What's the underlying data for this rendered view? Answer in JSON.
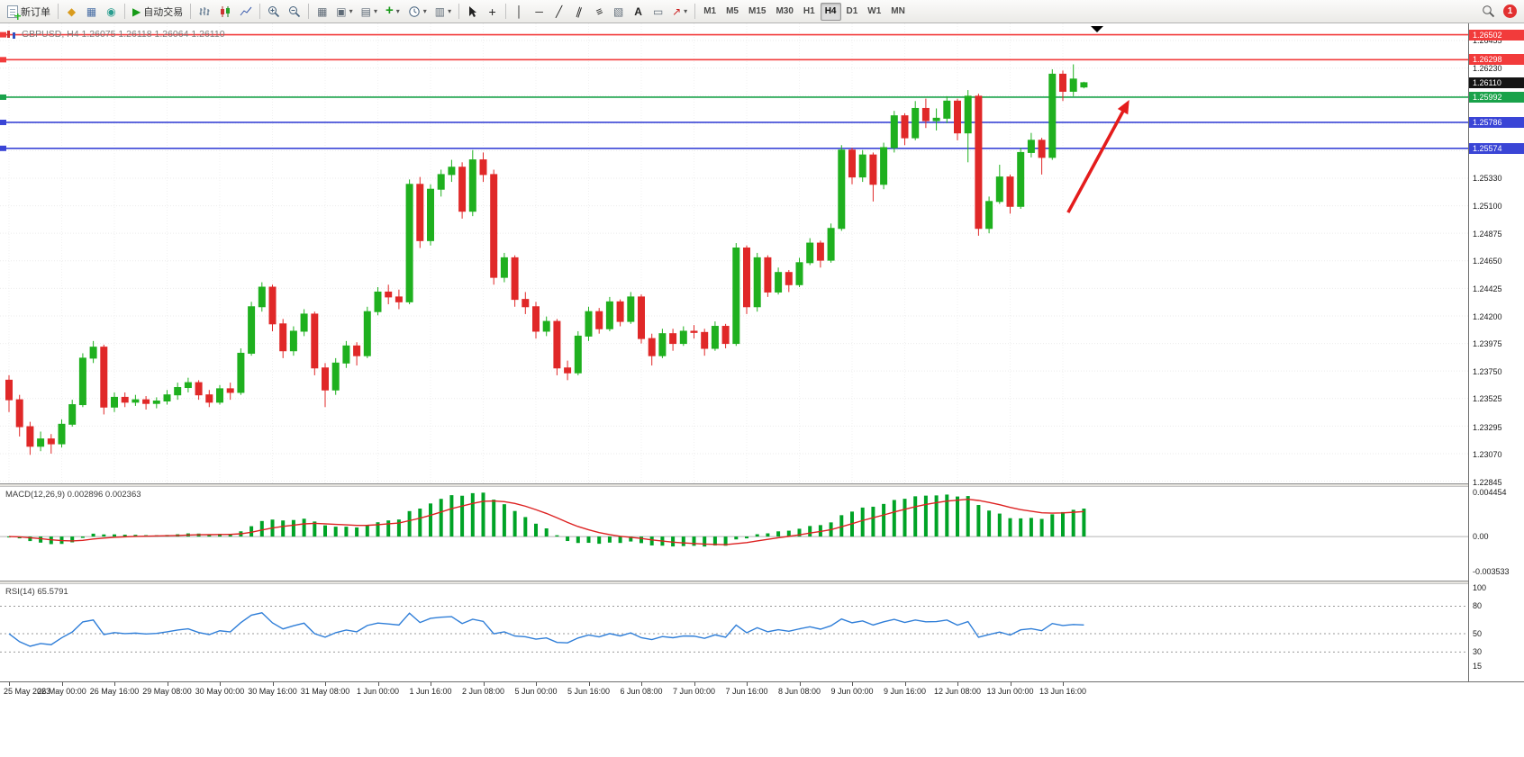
{
  "toolbar": {
    "new_order": {
      "label": "新订单"
    },
    "autotrading": {
      "label": "自动交易"
    },
    "timeframes": [
      "M1",
      "M5",
      "M15",
      "M30",
      "H1",
      "H4",
      "D1",
      "W1",
      "MN"
    ],
    "active_timeframe": "H4",
    "notification_badge": "1",
    "glyphs": {
      "marketwatch": "◆",
      "datawindow": "▦",
      "navigator": "◉",
      "autoplay": "▶",
      "tile": "▦",
      "newchart": "▣",
      "profiles": "▤",
      "templates": "▥",
      "crosshair": "+",
      "vline": "│",
      "hline": "─",
      "trendline": "╱",
      "channel": "∥",
      "fibonacci": "≡",
      "shapes": "▧",
      "text": "A",
      "label": "▭",
      "arrows": "↗",
      "caret": "▾",
      "plus": "+"
    }
  },
  "chart": {
    "title": "GBPUSD, H4 1.26075 1.26118 1.26064 1.26110",
    "symbol": "GBPUSD",
    "period": "H4",
    "ohlc_display": {
      "open": "1.26075",
      "high": "1.26118",
      "low": "1.26064",
      "close": "1.26110"
    }
  },
  "chart_data": [
    {
      "type": "candlestick",
      "title": "GBPUSD, H4 1.26075 1.26118 1.26064 1.26110",
      "ylim": [
        1.22837,
        1.2658
      ],
      "grid_anchor": 1.26455,
      "price_step": 0.00225,
      "x_label_every": 5,
      "x_labels": [
        "25 May 2023",
        "26 May 00:00",
        "26 May 16:00",
        "29 May 08:00",
        "30 May 00:00",
        "30 May 16:00",
        "31 May 08:00",
        "1 Jun 00:00",
        "1 Jun 16:00",
        "2 Jun 08:00",
        "5 Jun 00:00",
        "5 Jun 16:00",
        "6 Jun 08:00",
        "7 Jun 00:00",
        "7 Jun 16:00",
        "8 Jun 08:00",
        "9 Jun 00:00",
        "9 Jun 16:00",
        "12 Jun 08:00",
        "13 Jun 00:00",
        "13 Jun 16:00"
      ],
      "y_ticks": [
        "1.26455",
        "1.26230",
        "1.25330",
        "1.25100",
        "1.24875",
        "1.24650",
        "1.24425",
        "1.24200",
        "1.23975",
        "1.23750",
        "1.23525",
        "1.23295",
        "1.23070",
        "1.22845"
      ],
      "colors": {
        "bull": "#1fb01f",
        "bear": "#e02828"
      },
      "current_price": "1.26110",
      "hlines": [
        {
          "price": 1.26502,
          "color": "#f23b3b",
          "label": "1.26502"
        },
        {
          "price": 1.26298,
          "color": "#f23b3b",
          "label": "1.26298"
        },
        {
          "price": 1.25992,
          "color": "#19a24a",
          "label": "1.25992"
        },
        {
          "price": 1.25786,
          "color": "#3a45d6",
          "label": "1.25786"
        },
        {
          "price": 1.25574,
          "color": "#3a45d6",
          "label": "1.25574"
        }
      ],
      "annotations": [
        {
          "type": "arrow",
          "color": "#e41c1c",
          "x1_bar": 100.5,
          "price1": 1.2505,
          "x2_bar": 106.3,
          "price2": 1.2597
        }
      ],
      "candles": [
        [
          1.2368,
          1.2372,
          1.2342,
          1.2352
        ],
        [
          1.2352,
          1.2356,
          1.2322,
          1.233
        ],
        [
          1.233,
          1.2334,
          1.2307,
          1.2314
        ],
        [
          1.2314,
          1.2326,
          1.231,
          1.232
        ],
        [
          1.232,
          1.2324,
          1.2308,
          1.2316
        ],
        [
          1.2316,
          1.2336,
          1.2313,
          1.2332
        ],
        [
          1.2332,
          1.2352,
          1.233,
          1.2348
        ],
        [
          1.2348,
          1.239,
          1.2346,
          1.2386
        ],
        [
          1.2386,
          1.24,
          1.2382,
          1.2395
        ],
        [
          1.2395,
          1.2397,
          1.234,
          1.2346
        ],
        [
          1.2346,
          1.2358,
          1.2342,
          1.2354
        ],
        [
          1.2354,
          1.2358,
          1.2346,
          1.235
        ],
        [
          1.235,
          1.2356,
          1.2347,
          1.2352
        ],
        [
          1.2352,
          1.2355,
          1.2344,
          1.2349
        ],
        [
          1.2349,
          1.2354,
          1.2345,
          1.2351
        ],
        [
          1.2351,
          1.236,
          1.2348,
          1.2356
        ],
        [
          1.2356,
          1.2366,
          1.2352,
          1.2362
        ],
        [
          1.2362,
          1.237,
          1.2358,
          1.2366
        ],
        [
          1.2366,
          1.2368,
          1.2352,
          1.2356
        ],
        [
          1.2356,
          1.236,
          1.2346,
          1.235
        ],
        [
          1.235,
          1.2364,
          1.2348,
          1.2361
        ],
        [
          1.2361,
          1.2366,
          1.2352,
          1.2358
        ],
        [
          1.2358,
          1.2394,
          1.2356,
          1.239
        ],
        [
          1.239,
          1.2432,
          1.2388,
          1.2428
        ],
        [
          1.2428,
          1.2448,
          1.2424,
          1.2444
        ],
        [
          1.2444,
          1.2446,
          1.2408,
          1.2414
        ],
        [
          1.2414,
          1.2418,
          1.2386,
          1.2392
        ],
        [
          1.2392,
          1.2412,
          1.2388,
          1.2408
        ],
        [
          1.2408,
          1.2426,
          1.2404,
          1.2422
        ],
        [
          1.2422,
          1.2424,
          1.2372,
          1.2378
        ],
        [
          1.2378,
          1.2382,
          1.2346,
          1.236
        ],
        [
          1.236,
          1.2386,
          1.2356,
          1.2382
        ],
        [
          1.2382,
          1.24,
          1.2378,
          1.2396
        ],
        [
          1.2396,
          1.2399,
          1.238,
          1.2388
        ],
        [
          1.2388,
          1.2428,
          1.2386,
          1.2424
        ],
        [
          1.2424,
          1.2444,
          1.2421,
          1.244
        ],
        [
          1.244,
          1.2446,
          1.243,
          1.2436
        ],
        [
          1.2436,
          1.2442,
          1.2426,
          1.2432
        ],
        [
          1.2432,
          1.2532,
          1.243,
          1.2528
        ],
        [
          1.2528,
          1.2534,
          1.2476,
          1.2482
        ],
        [
          1.2482,
          1.2528,
          1.2478,
          1.2524
        ],
        [
          1.2524,
          1.254,
          1.2518,
          1.2536
        ],
        [
          1.2536,
          1.2548,
          1.253,
          1.2542
        ],
        [
          1.2542,
          1.2546,
          1.25,
          1.2506
        ],
        [
          1.2506,
          1.2556,
          1.2502,
          1.2548
        ],
        [
          1.2548,
          1.2554,
          1.253,
          1.2536
        ],
        [
          1.2536,
          1.254,
          1.2446,
          1.2452
        ],
        [
          1.2452,
          1.2472,
          1.2448,
          1.2468
        ],
        [
          1.2468,
          1.247,
          1.2428,
          1.2434
        ],
        [
          1.2434,
          1.244,
          1.2422,
          1.2428
        ],
        [
          1.2428,
          1.2432,
          1.2402,
          1.2408
        ],
        [
          1.2408,
          1.242,
          1.2404,
          1.2416
        ],
        [
          1.2416,
          1.2418,
          1.2372,
          1.2378
        ],
        [
          1.2378,
          1.2384,
          1.2368,
          1.2374
        ],
        [
          1.2374,
          1.2408,
          1.2372,
          1.2404
        ],
        [
          1.2404,
          1.2428,
          1.24,
          1.2424
        ],
        [
          1.2424,
          1.2427,
          1.2406,
          1.241
        ],
        [
          1.241,
          1.2436,
          1.2408,
          1.2432
        ],
        [
          1.2432,
          1.2434,
          1.2412,
          1.2416
        ],
        [
          1.2416,
          1.244,
          1.2414,
          1.2436
        ],
        [
          1.2436,
          1.2438,
          1.2398,
          1.2402
        ],
        [
          1.2402,
          1.2406,
          1.238,
          1.2388
        ],
        [
          1.2388,
          1.241,
          1.2386,
          1.2406
        ],
        [
          1.2406,
          1.241,
          1.2392,
          1.2398
        ],
        [
          1.2398,
          1.2412,
          1.2396,
          1.2408
        ],
        [
          1.2408,
          1.2413,
          1.2402,
          1.2407
        ],
        [
          1.2407,
          1.241,
          1.2388,
          1.2394
        ],
        [
          1.2394,
          1.2416,
          1.2392,
          1.2412
        ],
        [
          1.2412,
          1.2414,
          1.2394,
          1.2398
        ],
        [
          1.2398,
          1.248,
          1.2396,
          1.2476
        ],
        [
          1.2476,
          1.2478,
          1.2422,
          1.2428
        ],
        [
          1.2428,
          1.2472,
          1.2424,
          1.2468
        ],
        [
          1.2468,
          1.247,
          1.2436,
          1.244
        ],
        [
          1.244,
          1.246,
          1.2438,
          1.2456
        ],
        [
          1.2456,
          1.2458,
          1.244,
          1.2446
        ],
        [
          1.2446,
          1.2468,
          1.2444,
          1.2464
        ],
        [
          1.2464,
          1.2484,
          1.2462,
          1.248
        ],
        [
          1.248,
          1.2482,
          1.246,
          1.2466
        ],
        [
          1.2466,
          1.2496,
          1.2464,
          1.2492
        ],
        [
          1.2492,
          1.256,
          1.249,
          1.2556
        ],
        [
          1.2556,
          1.2558,
          1.2528,
          1.2534
        ],
        [
          1.2534,
          1.2556,
          1.253,
          1.2552
        ],
        [
          1.2552,
          1.2554,
          1.2514,
          1.2528
        ],
        [
          1.2528,
          1.2562,
          1.2524,
          1.2558
        ],
        [
          1.2558,
          1.2588,
          1.2554,
          1.2584
        ],
        [
          1.2584,
          1.2586,
          1.256,
          1.2566
        ],
        [
          1.2566,
          1.2596,
          1.2564,
          1.259
        ],
        [
          1.259,
          1.2598,
          1.2574,
          1.258
        ],
        [
          1.258,
          1.259,
          1.2572,
          1.2582
        ],
        [
          1.2582,
          1.26,
          1.2578,
          1.2596
        ],
        [
          1.2596,
          1.2598,
          1.2564,
          1.257
        ],
        [
          1.257,
          1.2605,
          1.2546,
          1.26
        ],
        [
          1.26,
          1.2602,
          1.2486,
          1.2492
        ],
        [
          1.2492,
          1.2518,
          1.2488,
          1.2514
        ],
        [
          1.2514,
          1.2544,
          1.2512,
          1.2534
        ],
        [
          1.2534,
          1.2536,
          1.2504,
          1.251
        ],
        [
          1.251,
          1.2558,
          1.2508,
          1.2554
        ],
        [
          1.2554,
          1.257,
          1.255,
          1.2564
        ],
        [
          1.2564,
          1.2566,
          1.2536,
          1.255
        ],
        [
          1.255,
          1.2622,
          1.2548,
          1.2618
        ],
        [
          1.2618,
          1.2621,
          1.2596,
          1.2604
        ],
        [
          1.2604,
          1.2626,
          1.26,
          1.2614
        ],
        [
          1.26075,
          1.26118,
          1.26064,
          1.2611
        ]
      ]
    },
    {
      "type": "macd-histogram",
      "label": "MACD(12,26,9) 0.002896 0.002363",
      "params": [
        12,
        26,
        9
      ],
      "current_macd": "0.002896",
      "current_signal": "0.002363",
      "derived_from": "candles closes",
      "y_ticks": [
        "0.004454",
        "0.00",
        "-0.003533"
      ],
      "ylim": [
        -0.00447,
        0.00503
      ],
      "color_histogram": "#00a326",
      "color_signal": "#dd2222"
    },
    {
      "type": "rsi",
      "label": "RSI(14) 65.5791",
      "period": 14,
      "current_value": "65.5791",
      "derived_from": "candles closes",
      "levels": [
        80,
        50,
        30
      ],
      "y_ticks": [
        "100",
        "80",
        "50",
        "30",
        "15"
      ],
      "ylim": [
        -2,
        104
      ],
      "color": "#2f7ed8"
    }
  ]
}
